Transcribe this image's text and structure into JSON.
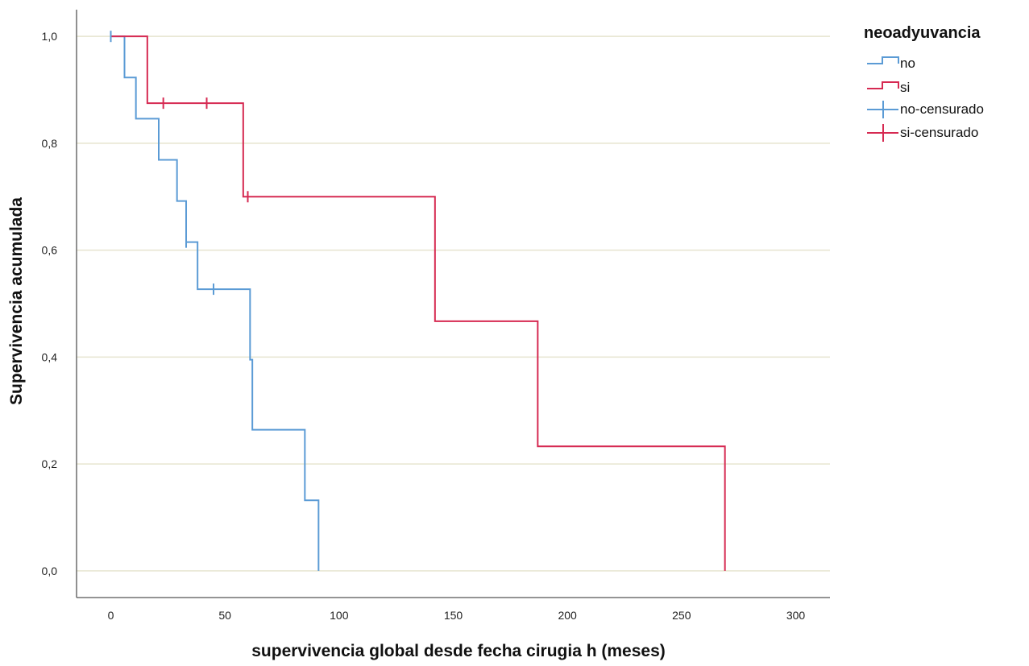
{
  "chart_data": {
    "type": "line",
    "subtype": "kaplan-meier",
    "xlabel": "supervivencia global desde fecha cirugia h (meses)",
    "ylabel": "Supervivencia acumulada",
    "xlim": [
      -15,
      315
    ],
    "ylim": [
      -0.05,
      1.05
    ],
    "xticks": [
      0,
      50,
      100,
      150,
      200,
      250,
      300
    ],
    "xtick_labels": [
      "0",
      "50",
      "100",
      "150",
      "200",
      "250",
      "300"
    ],
    "yticks": [
      0,
      0.2,
      0.4,
      0.6,
      0.8,
      1.0
    ],
    "ytick_labels": [
      "0,0",
      "0,2",
      "0,4",
      "0,6",
      "0,8",
      "1,0"
    ],
    "grid": "horizontal",
    "legend": {
      "title": "neoadyuvancia",
      "position": "top-right",
      "entries": [
        "no",
        "si",
        "no-censurado",
        "si-censurado"
      ]
    },
    "colors": {
      "no": "#5b9bd5",
      "si": "#d62a52",
      "grid": "#e6e4cf",
      "axis": "#555555"
    },
    "series": [
      {
        "name": "no",
        "steps": [
          [
            0,
            1.0
          ],
          [
            6,
            0.923
          ],
          [
            11,
            0.846
          ],
          [
            21,
            0.769
          ],
          [
            29,
            0.692
          ],
          [
            33,
            0.615
          ],
          [
            38,
            0.527
          ],
          [
            61,
            0.395
          ],
          [
            62,
            0.264
          ],
          [
            85,
            0.132
          ],
          [
            91,
            0.0
          ]
        ],
        "censored": [
          [
            0,
            1.0
          ],
          [
            33,
            0.615
          ],
          [
            45,
            0.527
          ]
        ]
      },
      {
        "name": "si",
        "steps": [
          [
            0,
            1.0
          ],
          [
            16,
            0.875
          ],
          [
            58,
            0.7
          ],
          [
            142,
            0.467
          ],
          [
            187,
            0.233
          ],
          [
            269,
            0.0
          ]
        ],
        "censored": [
          [
            23,
            0.875
          ],
          [
            42,
            0.875
          ],
          [
            60,
            0.7
          ]
        ]
      }
    ]
  }
}
